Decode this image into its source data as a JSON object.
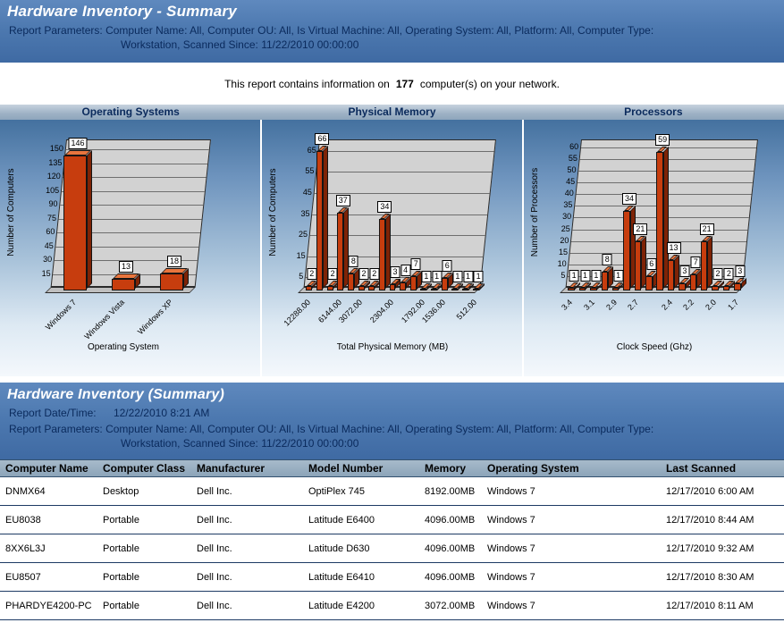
{
  "header": {
    "title": "Hardware Inventory - Summary",
    "params_label": "Report Parameters:",
    "params_line1": "Computer Name:  All, Computer OU:  All, Is Virtual Machine:  All, Operating System:  All, Platform:  All, Computer Type:",
    "params_line2": "Workstation, Scanned Since:  11/22/2010 00:00:00"
  },
  "info": {
    "prefix": "This report contains information on",
    "count": "177",
    "suffix": "computer(s) on your network."
  },
  "charts_header": [
    "Operating Systems",
    "Physical Memory",
    "Processors"
  ],
  "chart_data": [
    {
      "type": "bar",
      "title": "Operating Systems",
      "categories": [
        "Windows 7",
        "Windows Vista",
        "Windows XP"
      ],
      "values": [
        146,
        13,
        18
      ],
      "x_tick_labels": [
        "Windows 7",
        "Windows Vista",
        "Windows XP"
      ],
      "xlabel": "Operating System",
      "ylabel": "Number of Computers",
      "y_ticks": [
        15,
        30,
        45,
        60,
        75,
        90,
        105,
        120,
        135,
        150
      ],
      "ylim": [
        0,
        160
      ],
      "legend": "none",
      "grid": "horizontal"
    },
    {
      "type": "bar",
      "title": "Physical Memory",
      "values": [
        2,
        66,
        2,
        37,
        8,
        2,
        2,
        34,
        3,
        4,
        7,
        1,
        1,
        6,
        1,
        1,
        1
      ],
      "x_tick_labels": [
        "12288.00",
        "6144.00",
        "3072.00",
        "2304.00",
        "1792.00",
        "1536.00",
        "512.00"
      ],
      "xlabel": "Total Physical Memory (MB)",
      "ylabel": "Number of Computers",
      "y_ticks": [
        5,
        15,
        25,
        35,
        45,
        55,
        65
      ],
      "ylim": [
        0,
        70
      ],
      "legend": "none",
      "grid": "horizontal"
    },
    {
      "type": "bar",
      "title": "Processors",
      "values": [
        1,
        1,
        1,
        8,
        1,
        34,
        21,
        6,
        59,
        13,
        3,
        7,
        21,
        2,
        2,
        3
      ],
      "x_tick_labels": [
        "3.4",
        "3.1",
        "2.9",
        "2.7",
        "2.4",
        "2.2",
        "2.0",
        "1.7"
      ],
      "xlabel": "Clock Speed (Ghz)",
      "ylabel": "Number of Processors",
      "y_ticks": [
        5,
        10,
        15,
        20,
        25,
        30,
        35,
        40,
        45,
        50,
        55,
        60
      ],
      "ylim": [
        0,
        63
      ],
      "legend": "none",
      "grid": "horizontal"
    }
  ],
  "summary_header": {
    "title": "Hardware Inventory (Summary)",
    "date_label": "Report Date/Time:",
    "date_value": "12/22/2010 8:21 AM",
    "params_label": "Report Parameters:",
    "params_line1": "Computer Name:  All, Computer OU:  All, Is Virtual Machine:  All, Operating System:  All, Platform:  All, Computer Type:",
    "params_line2": "Workstation, Scanned Since:  11/22/2010 00:00:00"
  },
  "table": {
    "columns": [
      "Computer Name",
      "Computer Class",
      "Manufacturer",
      "Model Number",
      "Memory",
      "Operating System",
      "Last Scanned"
    ],
    "rows": [
      [
        "DNMX64",
        "Desktop",
        "Dell Inc.",
        "OptiPlex 745",
        "8192.00MB",
        "Windows 7",
        "12/17/2010 6:00 AM"
      ],
      [
        "EU8038",
        "Portable",
        "Dell Inc.",
        "Latitude E6400",
        "4096.00MB",
        "Windows 7",
        "12/17/2010 8:44 AM"
      ],
      [
        "8XX6L3J",
        "Portable",
        "Dell Inc.",
        "Latitude D630",
        "4096.00MB",
        "Windows 7",
        "12/17/2010 9:32 AM"
      ],
      [
        "EU8507",
        "Portable",
        "Dell Inc.",
        "Latitude E6410",
        "4096.00MB",
        "Windows 7",
        "12/17/2010 8:30 AM"
      ],
      [
        "PHARDYE4200-PC",
        "Portable",
        "Dell Inc.",
        "Latitude E4200",
        "3072.00MB",
        "Windows 7",
        "12/17/2010 8:11 AM"
      ]
    ]
  },
  "colors": {
    "header_blue": "#4d79b0",
    "bar_orange": "#c73d0e",
    "navy_text": "#0a2a5c",
    "row_separator": "#1d3a64",
    "chart_wall": "#d2d2d2"
  }
}
